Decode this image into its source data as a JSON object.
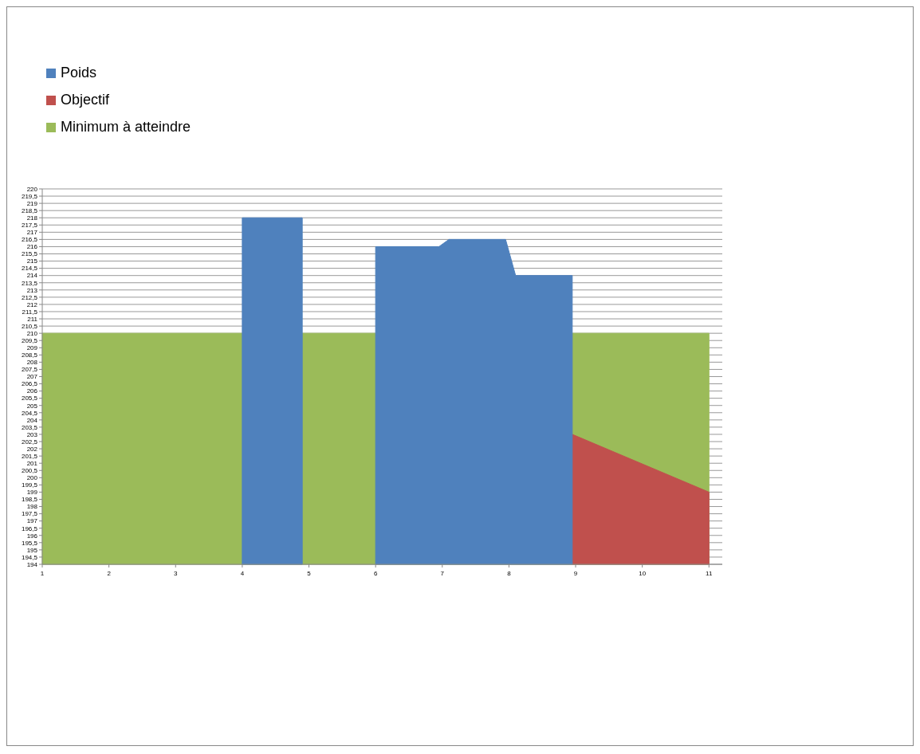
{
  "chart_data": {
    "type": "area",
    "xlim": [
      1,
      11.2
    ],
    "xticks": [
      1,
      2,
      3,
      4,
      5,
      6,
      7,
      8,
      9,
      10,
      11
    ],
    "ylim": [
      194,
      220
    ],
    "yticks": [
      194,
      {
        "value": 194.5,
        "label": "194,5"
      },
      195,
      {
        "value": 195.5,
        "label": "195,5"
      },
      196,
      {
        "value": 196.5,
        "label": "196,5"
      },
      197,
      {
        "value": 197.5,
        "label": "197,5"
      },
      198,
      {
        "value": 198.5,
        "label": "198,5"
      },
      199,
      {
        "value": 199.5,
        "label": "199,5"
      },
      200,
      {
        "value": 200.5,
        "label": "200,5"
      },
      201,
      {
        "value": 201.5,
        "label": "201,5"
      },
      202,
      {
        "value": 202.5,
        "label": "202,5"
      },
      203,
      {
        "value": 203.5,
        "label": "203,5"
      },
      204,
      {
        "value": 204.5,
        "label": "204,5"
      },
      205,
      {
        "value": 205.5,
        "label": "205,5"
      },
      206,
      {
        "value": 206.5,
        "label": "206,5"
      },
      207,
      {
        "value": 207.5,
        "label": "207,5"
      },
      208,
      {
        "value": 208.5,
        "label": "208,5"
      },
      209,
      {
        "value": 209.5,
        "label": "209,5"
      },
      210,
      {
        "value": 210.5,
        "label": "210,5"
      },
      211,
      {
        "value": 211.5,
        "label": "211,5"
      },
      212,
      {
        "value": 212.5,
        "label": "212,5"
      },
      213,
      {
        "value": 213.5,
        "label": "213,5"
      },
      214,
      {
        "value": 214.5,
        "label": "214,5"
      },
      215,
      {
        "value": 215.5,
        "label": "215,5"
      },
      216,
      {
        "value": 216.5,
        "label": "216,5"
      },
      217,
      {
        "value": 217.5,
        "label": "217,5"
      },
      218,
      {
        "value": 218.5,
        "label": "218,5"
      },
      219,
      {
        "value": 219.5,
        "label": "219,5"
      },
      220
    ],
    "grid": "y",
    "legend": "top left",
    "series": [
      {
        "name": "Poids",
        "color": "#4f81bd",
        "x": [
          4,
          4.9,
          5.5,
          6,
          6.95,
          7.1,
          7.95,
          8.1,
          8.95
        ],
        "values": [
          218,
          218,
          null,
          216,
          216,
          216.5,
          216.5,
          214,
          214
        ]
      },
      {
        "name": "Objectif",
        "color": "#c0504d",
        "x": [
          8.95,
          11
        ],
        "values": [
          203,
          199
        ]
      },
      {
        "name": "Minimum à atteindre",
        "color": "#9bbb59",
        "x": [
          1,
          11
        ],
        "values": [
          210,
          210
        ]
      }
    ]
  }
}
